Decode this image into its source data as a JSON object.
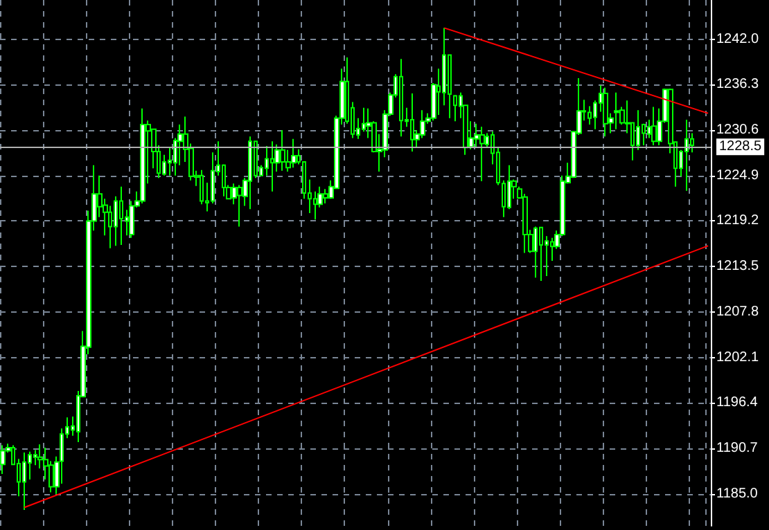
{
  "chart_data": {
    "type": "candlestick",
    "color": "#00ff00",
    "categories": [
      null,
      null,
      null,
      null,
      null,
      null,
      null,
      null,
      null,
      null,
      null,
      null,
      null,
      null,
      null,
      null,
      null,
      null,
      null,
      null,
      null,
      null,
      null,
      null,
      null,
      null,
      null,
      null,
      null,
      null,
      null,
      null,
      null,
      null,
      null,
      null,
      null,
      null,
      null,
      null,
      null,
      null,
      null,
      null,
      null,
      null,
      null,
      null,
      null,
      null,
      null,
      null,
      null,
      null,
      null,
      null,
      null,
      null,
      null,
      null,
      null,
      null,
      null,
      null,
      null,
      null,
      null,
      null,
      null,
      null,
      null,
      null,
      null,
      null,
      null,
      null,
      null,
      null,
      null,
      null,
      null,
      null,
      null,
      null,
      null,
      null,
      null,
      null,
      null,
      null,
      null,
      null,
      null,
      null,
      null,
      null,
      null,
      null,
      null,
      null,
      null,
      null,
      null,
      null,
      null,
      null,
      null,
      null,
      null,
      null,
      null,
      null,
      null,
      null,
      null,
      null,
      null,
      null,
      null,
      null,
      null,
      null,
      null,
      null,
      null,
      null,
      null,
      null,
      null,
      null,
      null,
      null
    ],
    "ohlc": [
      [
        1188.7,
        1191.1,
        1187.5,
        1190.4
      ],
      [
        1190.4,
        1191.3,
        1190.2,
        1190.8
      ],
      [
        1190.8,
        1191.1,
        1188.6,
        1188.7
      ],
      [
        1188.8,
        1189.4,
        1184.7,
        1186.5
      ],
      [
        1186.5,
        1190.2,
        1183.0,
        1189.0
      ],
      [
        1188.9,
        1190.3,
        1186.8,
        1189.9
      ],
      [
        1189.6,
        1190.5,
        1188.6,
        1189.9
      ],
      [
        1189.6,
        1191.2,
        1188.2,
        1189.3
      ],
      [
        1189.3,
        1190.8,
        1186.8,
        1188.5
      ],
      [
        1188.6,
        1189.1,
        1185.2,
        1185.9
      ],
      [
        1185.9,
        1189.7,
        1185.0,
        1189.0
      ],
      [
        1189.1,
        1193.2,
        1186.3,
        1192.5
      ],
      [
        1192.5,
        1194.6,
        1192.0,
        1193.4
      ],
      [
        1193.0,
        1194.7,
        1192.3,
        1193.5
      ],
      [
        1192.8,
        1197.9,
        1191.5,
        1197.3
      ],
      [
        1197.2,
        1205.4,
        1197.2,
        1203.5
      ],
      [
        1203.4,
        1220.5,
        1202.5,
        1219.2
      ],
      [
        1219.2,
        1226.2,
        1218.0,
        1222.6
      ],
      [
        1222.6,
        1224.9,
        1219.7,
        1221.0
      ],
      [
        1221.2,
        1222.0,
        1217.4,
        1220.3
      ],
      [
        1220.3,
        1221.1,
        1215.8,
        1218.5
      ],
      [
        1218.5,
        1222.3,
        1216.1,
        1221.7
      ],
      [
        1221.7,
        1223.5,
        1216.2,
        1219.5
      ],
      [
        1219.2,
        1220.6,
        1217.4,
        1219.7
      ],
      [
        1217.5,
        1221.7,
        1217.1,
        1221.1
      ],
      [
        1221.1,
        1222.9,
        1220.9,
        1221.7
      ],
      [
        1221.7,
        1233.3,
        1221.4,
        1231.3
      ],
      [
        1231.3,
        1231.8,
        1223.9,
        1230.5
      ],
      [
        1230.7,
        1230.8,
        1225.8,
        1227.9
      ],
      [
        1227.9,
        1228.7,
        1224.6,
        1225.2
      ],
      [
        1225.1,
        1227.5,
        1224.9,
        1226.6
      ],
      [
        1226.5,
        1228.4,
        1224.9,
        1226.8
      ],
      [
        1226.5,
        1229.6,
        1224.9,
        1229.3
      ],
      [
        1229.2,
        1231.3,
        1226.2,
        1230.1
      ],
      [
        1230.1,
        1232.3,
        1226.6,
        1228.2
      ],
      [
        1228.3,
        1228.9,
        1224.3,
        1224.8
      ],
      [
        1224.9,
        1225.5,
        1223.6,
        1224.7
      ],
      [
        1224.9,
        1225.6,
        1221.3,
        1221.7
      ],
      [
        1221.7,
        1224.0,
        1220.4,
        1221.5
      ],
      [
        1221.7,
        1227.8,
        1221.4,
        1225.5
      ],
      [
        1225.4,
        1229.2,
        1224.9,
        1226.2
      ],
      [
        1226.2,
        1226.3,
        1222.3,
        1223.4
      ],
      [
        1223.4,
        1223.7,
        1221.9,
        1222.0
      ],
      [
        1222.1,
        1223.9,
        1221.3,
        1223.4
      ],
      [
        1223.4,
        1223.7,
        1218.5,
        1222.4
      ],
      [
        1222.3,
        1224.6,
        1221.1,
        1224.3
      ],
      [
        1224.2,
        1229.8,
        1220.7,
        1229.2
      ],
      [
        1229.2,
        1229.2,
        1224.6,
        1224.9
      ],
      [
        1224.9,
        1226.2,
        1224.8,
        1225.9
      ],
      [
        1225.8,
        1228.6,
        1224.9,
        1227.0
      ],
      [
        1227.0,
        1229.2,
        1222.9,
        1226.5
      ],
      [
        1226.5,
        1228.8,
        1225.4,
        1228.1
      ],
      [
        1228.1,
        1230.6,
        1225.5,
        1226.6
      ],
      [
        1226.6,
        1228.1,
        1225.4,
        1225.9
      ],
      [
        1226.5,
        1229.5,
        1225.9,
        1227.4
      ],
      [
        1227.4,
        1228.2,
        1226.3,
        1226.6
      ],
      [
        1226.6,
        1226.6,
        1222.0,
        1222.7
      ],
      [
        1222.7,
        1224.4,
        1220.2,
        1222.0
      ],
      [
        1222.0,
        1222.9,
        1219.4,
        1221.3
      ],
      [
        1221.3,
        1223.5,
        1220.9,
        1222.6
      ],
      [
        1222.6,
        1223.2,
        1221.4,
        1222.1
      ],
      [
        1222.1,
        1224.3,
        1222.0,
        1223.5
      ],
      [
        1223.3,
        1232.4,
        1223.2,
        1232.1
      ],
      [
        1232.1,
        1238.3,
        1231.3,
        1236.7
      ],
      [
        1236.7,
        1239.7,
        1231.4,
        1231.7
      ],
      [
        1233.4,
        1234.1,
        1229.6,
        1230.1
      ],
      [
        1230.0,
        1232.1,
        1229.5,
        1230.8
      ],
      [
        1230.7,
        1233.4,
        1230.4,
        1231.4
      ],
      [
        1231.1,
        1233.3,
        1229.6,
        1231.5
      ],
      [
        1231.5,
        1231.7,
        1227.8,
        1227.9
      ],
      [
        1227.9,
        1230.1,
        1225.4,
        1228.2
      ],
      [
        1228.1,
        1233.1,
        1227.2,
        1232.6
      ],
      [
        1232.6,
        1235.3,
        1232.4,
        1235.0
      ],
      [
        1235.0,
        1237.6,
        1234.7,
        1237.3
      ],
      [
        1237.3,
        1239.5,
        1229.8,
        1231.8
      ],
      [
        1231.7,
        1233.4,
        1231.0,
        1231.9
      ],
      [
        1231.9,
        1235.2,
        1227.9,
        1229.4
      ],
      [
        1229.4,
        1230.6,
        1228.5,
        1230.1
      ],
      [
        1230.0,
        1233.1,
        1229.6,
        1231.7
      ],
      [
        1231.7,
        1232.7,
        1231.4,
        1232.1
      ],
      [
        1232.1,
        1236.5,
        1231.8,
        1236.3
      ],
      [
        1236.1,
        1238.3,
        1232.5,
        1235.4
      ],
      [
        1235.3,
        1243.4,
        1233.7,
        1240.0
      ],
      [
        1240.0,
        1240.0,
        1232.1,
        1235.1
      ],
      [
        1234.9,
        1235.0,
        1231.7,
        1233.7
      ],
      [
        1233.6,
        1235.3,
        1232.1,
        1234.9
      ],
      [
        1233.7,
        1233.7,
        1227.5,
        1228.4
      ],
      [
        1228.5,
        1231.7,
        1228.2,
        1229.6
      ],
      [
        1229.5,
        1231.4,
        1228.5,
        1230.0
      ],
      [
        1230.0,
        1231.0,
        1224.2,
        1228.9
      ],
      [
        1228.8,
        1230.2,
        1228.4,
        1229.8
      ],
      [
        1230.0,
        1230.4,
        1226.3,
        1227.7
      ],
      [
        1227.8,
        1228.5,
        1223.7,
        1224.0
      ],
      [
        1223.9,
        1224.3,
        1219.7,
        1221.0
      ],
      [
        1220.9,
        1226.2,
        1220.7,
        1224.2
      ],
      [
        1224.2,
        1224.4,
        1222.0,
        1223.5
      ],
      [
        1223.2,
        1223.5,
        1222.0,
        1222.1
      ],
      [
        1222.2,
        1222.6,
        1215.2,
        1217.5
      ],
      [
        1217.5,
        1218.1,
        1215.2,
        1215.4
      ],
      [
        1215.4,
        1218.5,
        1212.1,
        1218.3
      ],
      [
        1218.4,
        1218.4,
        1211.7,
        1216.2
      ],
      [
        1216.2,
        1217.3,
        1212.3,
        1216.7
      ],
      [
        1216.6,
        1217.1,
        1214.2,
        1216.0
      ],
      [
        1216.0,
        1218.0,
        1215.7,
        1217.5
      ],
      [
        1217.5,
        1224.9,
        1217.3,
        1224.2
      ],
      [
        1224.0,
        1226.5,
        1223.9,
        1224.8
      ],
      [
        1224.7,
        1230.4,
        1224.6,
        1230.4
      ],
      [
        1230.2,
        1237.1,
        1230.0,
        1233.0
      ],
      [
        1233.0,
        1234.4,
        1231.8,
        1232.9
      ],
      [
        1232.8,
        1233.6,
        1231.3,
        1232.1
      ],
      [
        1232.2,
        1234.3,
        1230.7,
        1234.0
      ],
      [
        1234.0,
        1236.2,
        1232.9,
        1235.2
      ],
      [
        1235.2,
        1235.9,
        1229.8,
        1231.4
      ],
      [
        1231.5,
        1232.7,
        1230.2,
        1232.1
      ],
      [
        1232.8,
        1235.3,
        1230.7,
        1233.0
      ],
      [
        1233.1,
        1233.5,
        1231.3,
        1231.5
      ],
      [
        1231.5,
        1234.3,
        1230.2,
        1231.4
      ],
      [
        1231.5,
        1231.5,
        1226.8,
        1228.7
      ],
      [
        1228.7,
        1233.1,
        1228.1,
        1231.0
      ],
      [
        1231.3,
        1231.4,
        1228.7,
        1230.2
      ],
      [
        1230.1,
        1231.9,
        1229.6,
        1231.0
      ],
      [
        1231.1,
        1233.5,
        1228.7,
        1229.2
      ],
      [
        1229.2,
        1233.3,
        1228.7,
        1231.7
      ],
      [
        1231.7,
        1235.8,
        1231.5,
        1235.7
      ],
      [
        1235.7,
        1235.8,
        1227.7,
        1228.9
      ],
      [
        1229.1,
        1229.2,
        1223.5,
        1225.8
      ],
      [
        1225.8,
        1228.1,
        1224.8,
        1227.9
      ],
      [
        1227.9,
        1231.9,
        1223.0,
        1229.5
      ],
      [
        1229.5,
        1230.2,
        1227.8,
        1228.7
      ],
      null,
      null,
      null
    ],
    "series": [
      {
        "type": "line",
        "color": "#ff0000",
        "values": [
          null,
          null,
          null,
          null,
          1183.3,
          null,
          null,
          null,
          null,
          null,
          null,
          null,
          null,
          null,
          null,
          null,
          null,
          null,
          null,
          null,
          null,
          null,
          null,
          null,
          null,
          null,
          null,
          null,
          null,
          null,
          null,
          null,
          null,
          null,
          null,
          null,
          null,
          null,
          null,
          null,
          null,
          null,
          null,
          null,
          null,
          null,
          null,
          null,
          null,
          null,
          null,
          null,
          null,
          null,
          null,
          null,
          null,
          null,
          null,
          null,
          null,
          null,
          null,
          null,
          null,
          null,
          null,
          null,
          null,
          null,
          null,
          null,
          null,
          null,
          null,
          null,
          null,
          null,
          null,
          null,
          null,
          null,
          null,
          null,
          null,
          null,
          null,
          null,
          null,
          null,
          null,
          null,
          null,
          null,
          null,
          null,
          null,
          null,
          null,
          null,
          null,
          null,
          null,
          null,
          null,
          null,
          null,
          null,
          null,
          null,
          null,
          null,
          null,
          null,
          null,
          null,
          null,
          null,
          null,
          null,
          null,
          null,
          null,
          null,
          null,
          null,
          null,
          null,
          null,
          null,
          null,
          1216.1
        ]
      },
      {
        "type": "line",
        "color": "#ff0000",
        "values": [
          null,
          null,
          null,
          null,
          null,
          null,
          null,
          null,
          null,
          null,
          null,
          null,
          null,
          null,
          null,
          null,
          null,
          null,
          null,
          null,
          null,
          null,
          null,
          null,
          null,
          null,
          null,
          null,
          null,
          null,
          null,
          null,
          null,
          null,
          null,
          null,
          null,
          null,
          null,
          null,
          null,
          null,
          null,
          null,
          null,
          null,
          null,
          null,
          null,
          null,
          null,
          null,
          null,
          null,
          null,
          null,
          null,
          null,
          null,
          null,
          null,
          null,
          null,
          null,
          null,
          null,
          null,
          null,
          null,
          null,
          null,
          null,
          null,
          null,
          null,
          null,
          null,
          null,
          null,
          null,
          null,
          null,
          1243.4,
          null,
          null,
          null,
          null,
          null,
          null,
          null,
          null,
          null,
          null,
          null,
          null,
          null,
          null,
          null,
          null,
          null,
          null,
          null,
          null,
          null,
          null,
          null,
          null,
          null,
          null,
          null,
          null,
          null,
          null,
          null,
          null,
          null,
          null,
          null,
          null,
          null,
          null,
          null,
          null,
          null,
          null,
          null,
          null,
          null,
          null,
          null,
          null,
          1232.7
        ]
      }
    ],
    "ylim": [
      1181.0,
      1246.9
    ],
    "yticks": [
      {
        "value": 1242.0,
        "label": "1242.0"
      },
      {
        "value": 1236.3,
        "label": "1236.3"
      },
      {
        "value": 1230.6,
        "label": "1230.6"
      },
      {
        "value": 1224.9,
        "label": "1224.9"
      },
      {
        "value": 1219.2,
        "label": "1219.2"
      },
      {
        "value": 1213.5,
        "label": "1213.5"
      },
      {
        "value": 1207.8,
        "label": "1207.8"
      },
      {
        "value": 1202.1,
        "label": "1202.1"
      },
      {
        "value": 1196.4,
        "label": "1196.4"
      },
      {
        "value": 1190.7,
        "label": "1190.7"
      },
      {
        "value": 1185.0,
        "label": "1185.0"
      }
    ],
    "ref_lines": [
      {
        "axis": "y",
        "value": 1228.5,
        "label": "1228.5",
        "color": "#b0b0b0"
      }
    ],
    "grid": true,
    "tick_labels": "y",
    "line_style": "solid"
  }
}
